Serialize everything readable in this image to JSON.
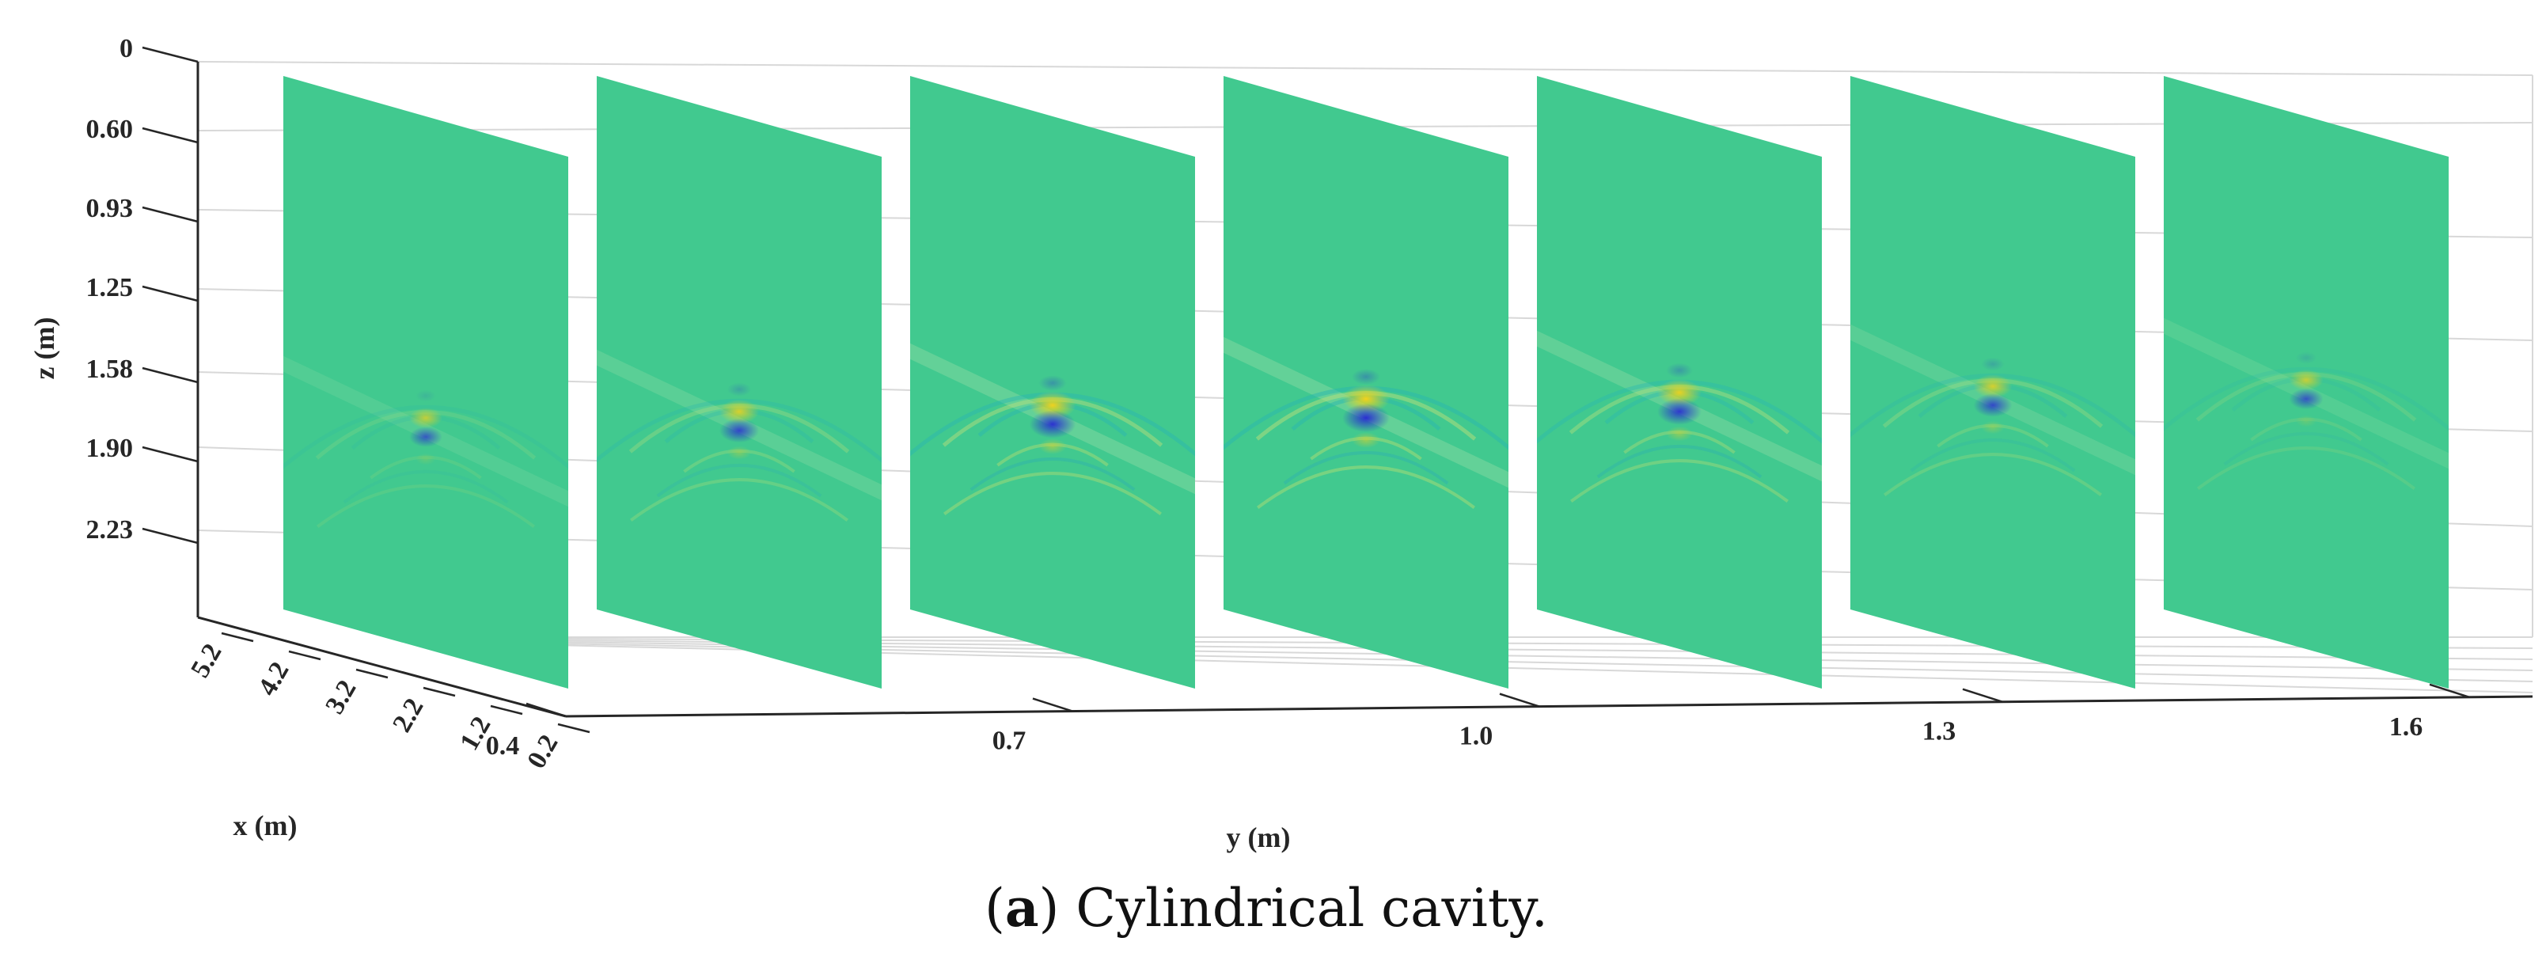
{
  "chart_data": {
    "type": "3d-slice",
    "zlabel": "z (m)",
    "xlabel": "x (m)",
    "ylabel": "y (m)",
    "z_ticks": [
      "0",
      "0.60",
      "0.93",
      "1.25",
      "1.58",
      "1.90",
      "2.23"
    ],
    "x_ticks": [
      "5.2",
      "4.2",
      "3.2",
      "2.2",
      "1.2",
      "0.2"
    ],
    "y_ticks": [
      "0.4",
      "0.7",
      "1.0",
      "1.3",
      "1.6"
    ],
    "slices": [
      {
        "index": 1,
        "anomaly_intensity": 0.35
      },
      {
        "index": 2,
        "anomaly_intensity": 0.65
      },
      {
        "index": 3,
        "anomaly_intensity": 0.95
      },
      {
        "index": 4,
        "anomaly_intensity": 1.0
      },
      {
        "index": 5,
        "anomaly_intensity": 0.85
      },
      {
        "index": 6,
        "anomaly_intensity": 0.6
      },
      {
        "index": 7,
        "anomaly_intensity": 0.4
      }
    ],
    "colors": {
      "background": "#41c98f",
      "positive": "#f2d21b",
      "negative": "#2a2fd1",
      "axis": "#262626",
      "grid": "#d8d8d8"
    }
  },
  "caption": {
    "letter": "a",
    "text": "Cylindrical cavity."
  }
}
